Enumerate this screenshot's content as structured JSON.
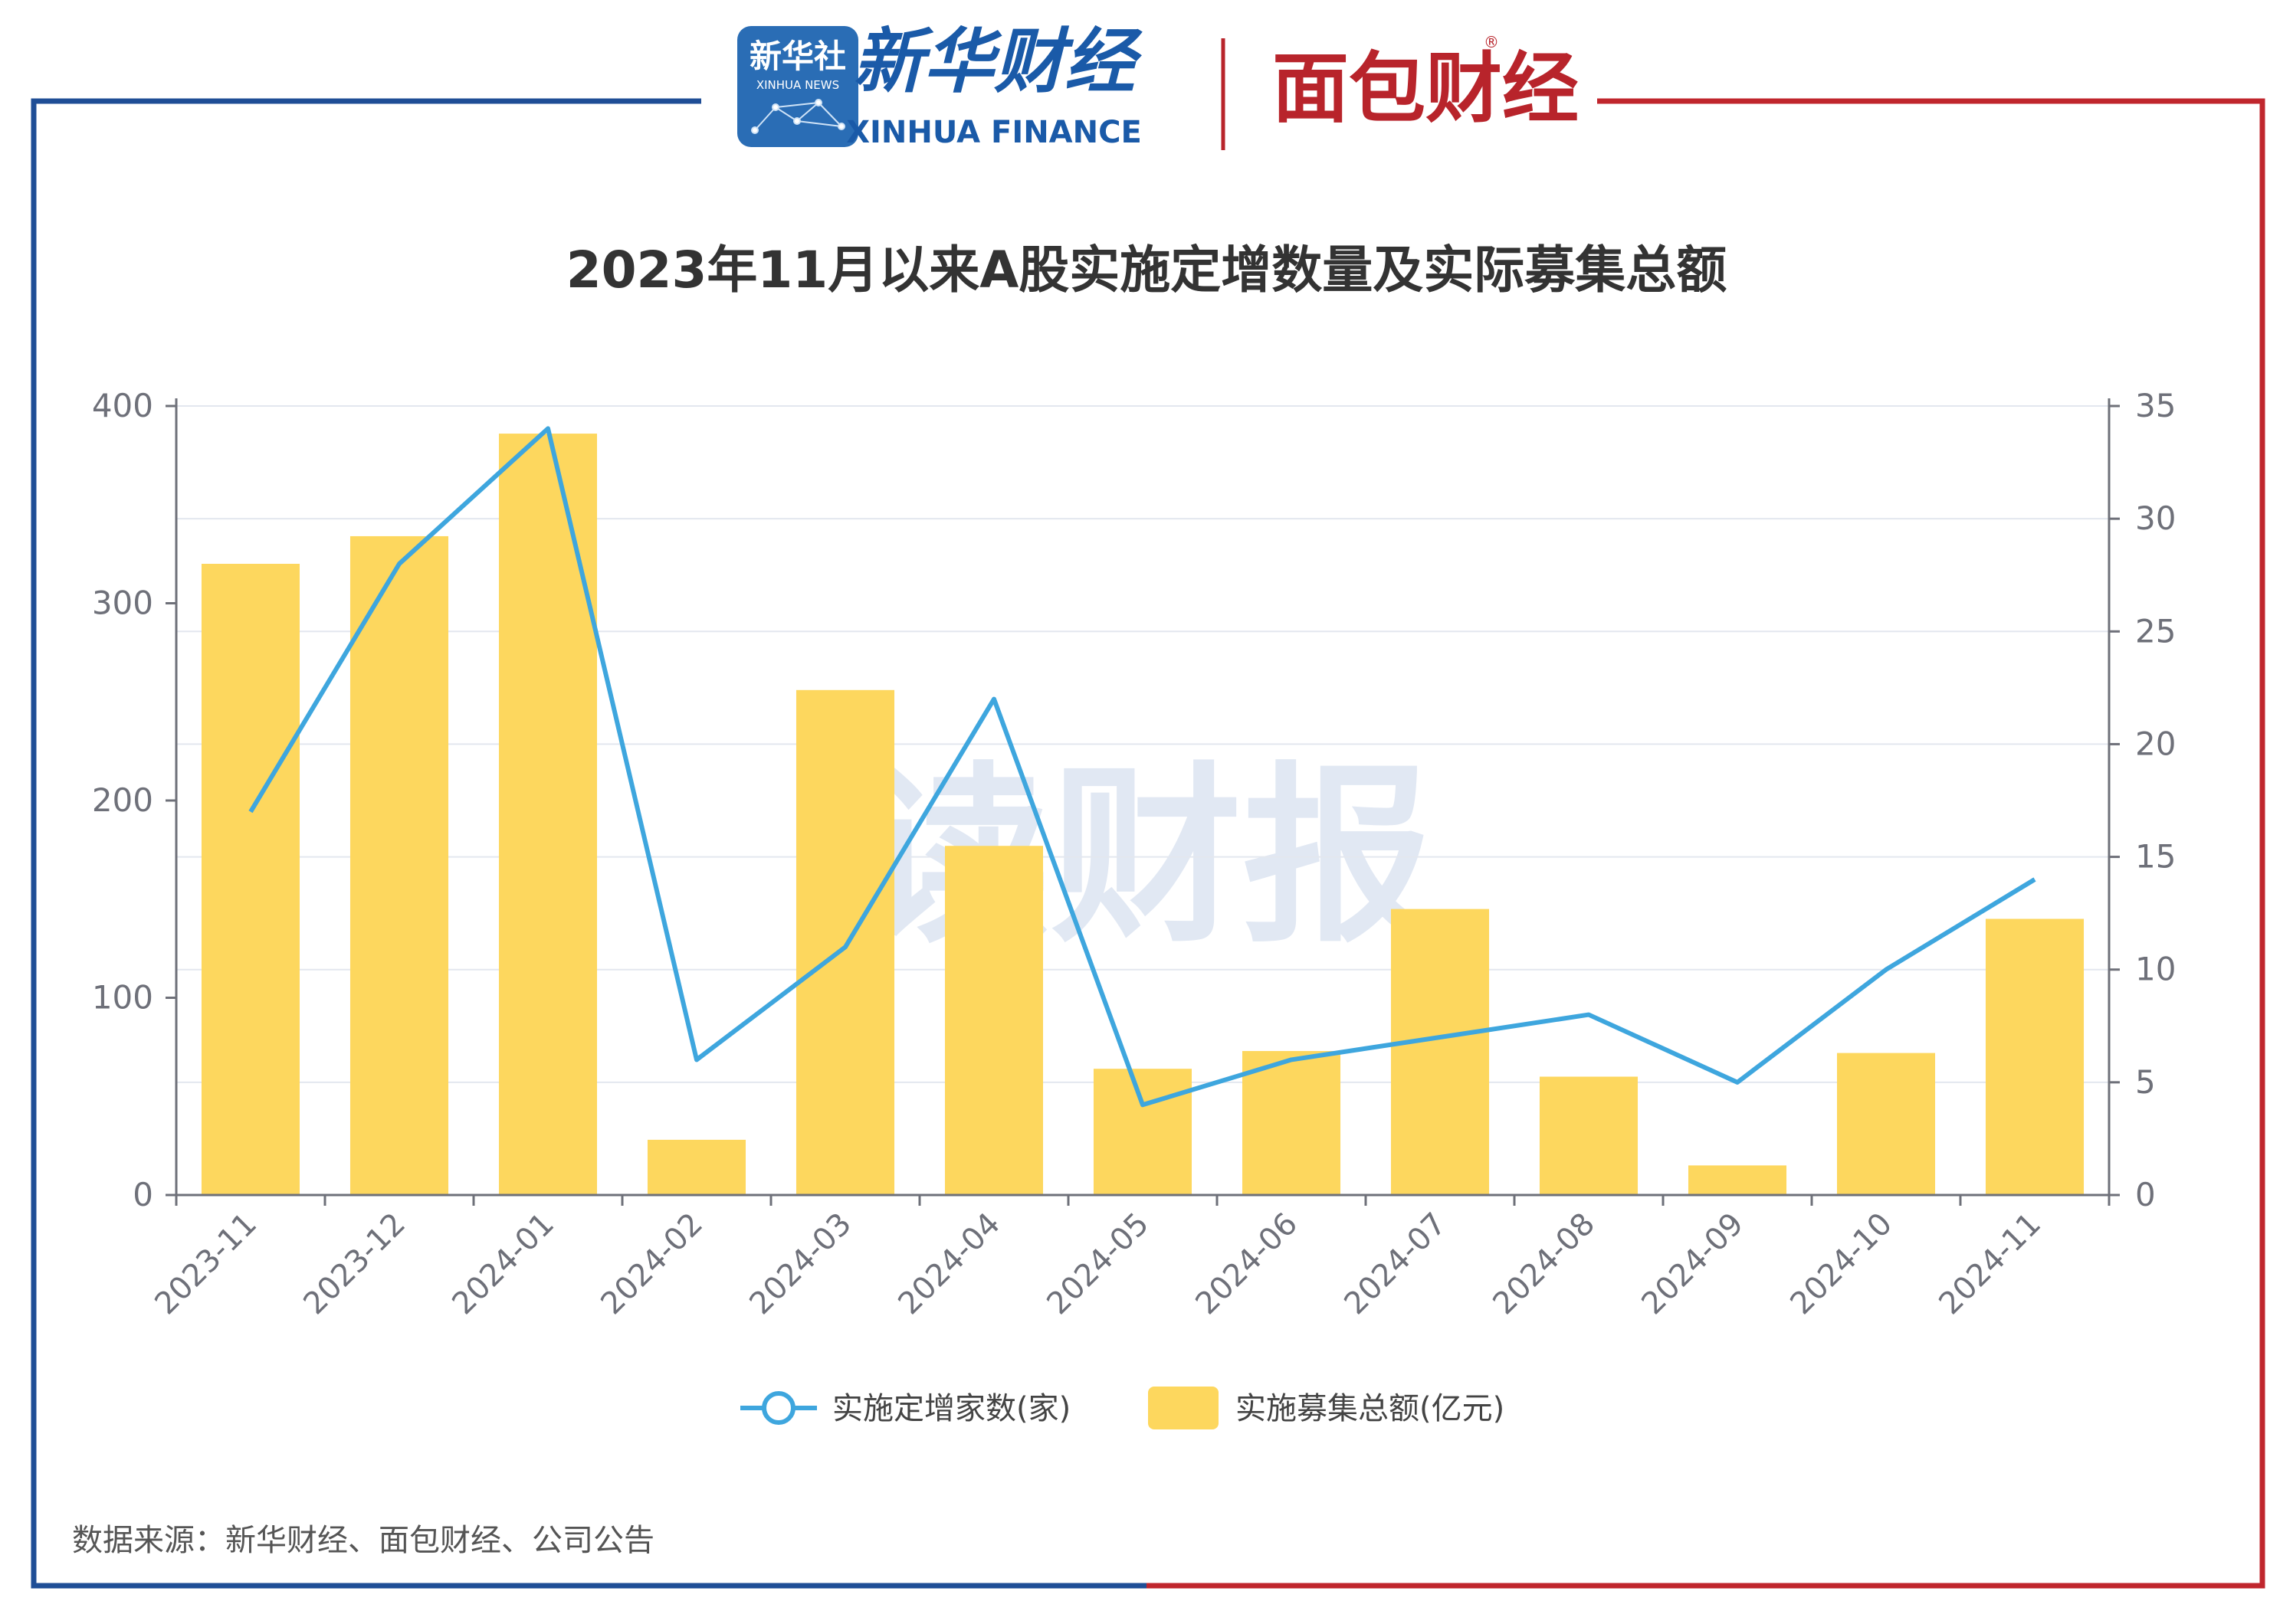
{
  "header": {
    "xinhua_badge_cn": "新华社",
    "xinhua_badge_en": "XINHUA NEWS",
    "xinhua_finance_cn": "新华财经",
    "xinhua_finance_en": "XINHUA FINANCE",
    "mianbao_logo": "面包财经",
    "registered_mark": "®",
    "colors": {
      "left_frame": "#1f4e96",
      "right_frame": "#c0262d",
      "brand_blue": "#1a5aa8",
      "brand_red": "#b8242b"
    }
  },
  "watermark": "读财报",
  "source_note": "数据来源：新华财经、面包财经、公司公告",
  "chart_data": {
    "type": "bar",
    "title": "2023年11月以来A股实施定增数量及实际募集总额",
    "categories": [
      "2023-11",
      "2023-12",
      "2024-01",
      "2024-02",
      "2024-03",
      "2024-04",
      "2024-05",
      "2024-06",
      "2024-07",
      "2024-08",
      "2024-09",
      "2024-10",
      "2024-11"
    ],
    "series": [
      {
        "name": "实施募集总额(亿元)",
        "type": "bar",
        "axis": "left",
        "color": "#fdd75e",
        "values": [
          320,
          334,
          386,
          28,
          256,
          177,
          64,
          73,
          145,
          60,
          15,
          72,
          140
        ]
      },
      {
        "name": "实施定增家数(家)",
        "type": "line",
        "axis": "right",
        "color": "#3ea6de",
        "values": [
          17,
          28,
          34,
          6,
          11,
          22,
          4,
          6,
          7,
          8,
          5,
          10,
          14
        ]
      }
    ],
    "y_left": {
      "ylim": [
        0,
        400
      ],
      "ticks": [
        "0",
        "100",
        "200",
        "300",
        "400"
      ]
    },
    "y_right": {
      "ylim": [
        0,
        35
      ],
      "ticks": [
        "0",
        "5",
        "10",
        "15",
        "20",
        "25",
        "30",
        "35"
      ]
    },
    "legend": {
      "placement": "bottom-center",
      "items": [
        {
          "label": "实施定增家数(家)",
          "marker": "line-circle",
          "color": "#3ea6de"
        },
        {
          "label": "实施募集总额(亿元)",
          "marker": "rect",
          "color": "#fdd75e"
        }
      ]
    },
    "grid": true
  }
}
